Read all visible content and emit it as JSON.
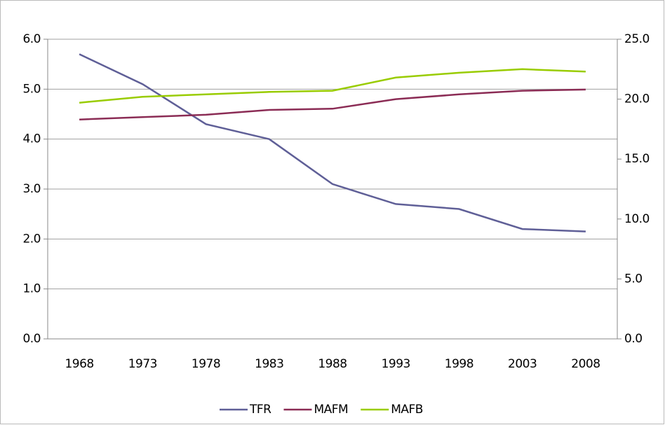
{
  "chart_data": {
    "type": "line",
    "categories": [
      "1968",
      "1973",
      "1978",
      "1983",
      "1988",
      "1993",
      "1998",
      "2003",
      "2008"
    ],
    "series": [
      {
        "name": "TFR",
        "color": "#5f5f97",
        "values": [
          5.7,
          5.1,
          4.3,
          4.0,
          3.1,
          2.7,
          2.6,
          2.2,
          2.15
        ]
      },
      {
        "name": "MAFM",
        "color": "#8b2c55",
        "axis": "y2",
        "values": [
          18.3,
          18.5,
          18.7,
          19.1,
          19.2,
          20.0,
          20.4,
          20.7,
          20.8
        ]
      },
      {
        "name": "MAFB",
        "color": "#99cc00",
        "axis": "y2",
        "values": [
          19.7,
          20.2,
          20.4,
          20.6,
          20.7,
          21.8,
          22.2,
          22.5,
          22.3
        ]
      }
    ],
    "ylim": [
      0,
      6
    ],
    "yticks": [
      {
        "value": 0,
        "label": "0.0"
      },
      {
        "value": 1,
        "label": "1.0"
      },
      {
        "value": 2,
        "label": "2.0"
      },
      {
        "value": 3,
        "label": "3.0"
      },
      {
        "value": 4,
        "label": "4.0"
      },
      {
        "value": 5,
        "label": "5.0"
      },
      {
        "value": 6,
        "label": "6.0"
      }
    ],
    "y2lim": [
      0,
      25
    ],
    "y2ticks": [
      {
        "value": 0,
        "label": "0.0"
      },
      {
        "value": 5,
        "label": "5.0"
      },
      {
        "value": 10,
        "label": "10.0"
      },
      {
        "value": 15,
        "label": "15.0"
      },
      {
        "value": 20,
        "label": "20.0"
      },
      {
        "value": 25,
        "label": "25.0"
      }
    ],
    "grid": true,
    "legend": "bottom"
  }
}
